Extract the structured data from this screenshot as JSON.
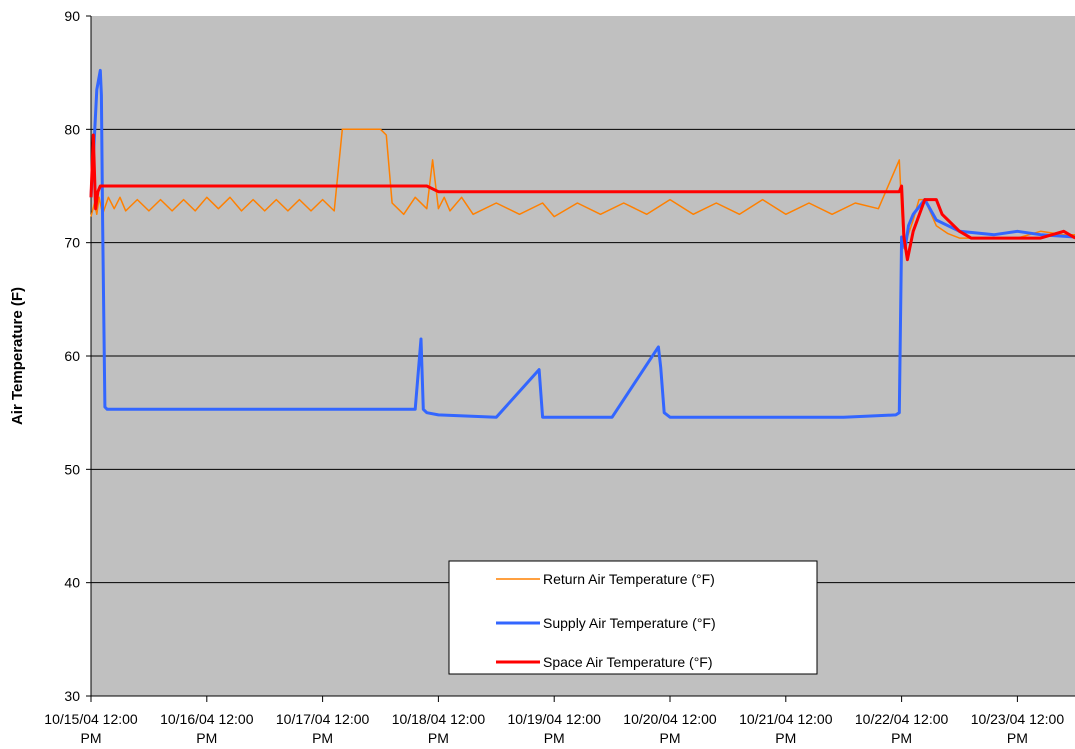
{
  "chart_data": {
    "type": "line",
    "ylabel": "Air Temperature (F)",
    "ylim": [
      30,
      90
    ],
    "yticks": [
      30,
      40,
      50,
      60,
      70,
      80,
      90
    ],
    "xlim": [
      "10/15/04 12:00 PM",
      "10/23/04 12:00 PM (+0.5 day)"
    ],
    "xtick_labels": [
      [
        "10/15/04 12:00",
        "PM"
      ],
      [
        "10/16/04 12:00",
        "PM"
      ],
      [
        "10/17/04 12:00",
        "PM"
      ],
      [
        "10/18/04 12:00",
        "PM"
      ],
      [
        "10/19/04 12:00",
        "PM"
      ],
      [
        "10/20/04 12:00",
        "PM"
      ],
      [
        "10/21/04 12:00",
        "PM"
      ],
      [
        "10/22/04 12:00",
        "PM"
      ],
      [
        "10/23/04 12:00",
        "PM"
      ]
    ],
    "grid": "horizontal",
    "plot_background": "#C0C0C0",
    "legend_position": "bottom-center",
    "series": [
      {
        "name": "Return Air Temperature  (°F)",
        "color": "#FF8000",
        "x_days": [
          0.0,
          0.03,
          0.05,
          0.07,
          0.1,
          0.15,
          0.2,
          0.25,
          0.3,
          0.4,
          0.5,
          0.6,
          0.7,
          0.8,
          0.9,
          1.0,
          1.1,
          1.2,
          1.3,
          1.4,
          1.5,
          1.6,
          1.7,
          1.8,
          1.9,
          2.0,
          2.1,
          2.17,
          2.2,
          2.5,
          2.55,
          2.6,
          2.7,
          2.8,
          2.9,
          2.95,
          3.0,
          3.05,
          3.1,
          3.2,
          3.3,
          3.5,
          3.7,
          3.9,
          4.0,
          4.2,
          4.4,
          4.6,
          4.8,
          5.0,
          5.2,
          5.4,
          5.6,
          5.8,
          6.0,
          6.2,
          6.4,
          6.6,
          6.8,
          6.98,
          7.0,
          7.02,
          7.05,
          7.1,
          7.15,
          7.2,
          7.3,
          7.4,
          7.5,
          7.6,
          7.7,
          7.8,
          8.0,
          8.2,
          8.4,
          8.5
        ],
        "values": [
          72.3,
          73.5,
          72.5,
          74.0,
          72.5,
          74.0,
          73.0,
          74.0,
          72.8,
          73.8,
          72.8,
          73.8,
          72.8,
          73.8,
          72.8,
          74.0,
          73.0,
          74.0,
          72.8,
          73.8,
          72.8,
          73.8,
          72.8,
          73.8,
          72.8,
          73.8,
          72.8,
          80.0,
          80.0,
          80.0,
          79.5,
          73.5,
          72.5,
          74.0,
          73.0,
          77.3,
          73.0,
          74.0,
          72.8,
          74.0,
          72.5,
          73.5,
          72.5,
          73.5,
          72.3,
          73.5,
          72.5,
          73.5,
          72.5,
          73.8,
          72.5,
          73.5,
          72.5,
          73.8,
          72.5,
          73.5,
          72.5,
          73.5,
          73.0,
          77.3,
          73.0,
          69.5,
          70.5,
          72.0,
          73.8,
          73.8,
          71.5,
          70.8,
          70.4,
          70.4,
          70.4,
          70.4,
          70.4,
          71.0,
          70.7,
          70.7
        ]
      },
      {
        "name": "Supply Air Temperature (°F)",
        "color": "#3366FF",
        "x_days": [
          0.0,
          0.03,
          0.05,
          0.08,
          0.09,
          0.1,
          0.12,
          0.14,
          0.2,
          0.5,
          1.0,
          1.5,
          2.0,
          2.5,
          2.8,
          2.85,
          2.87,
          2.9,
          3.0,
          3.5,
          3.87,
          3.9,
          4.0,
          4.5,
          4.9,
          4.92,
          4.95,
          5.0,
          5.5,
          6.0,
          6.5,
          6.95,
          6.98,
          7.0,
          7.03,
          7.06,
          7.1,
          7.2,
          7.3,
          7.5,
          7.8,
          8.0,
          8.2,
          8.5
        ],
        "values": [
          74.0,
          79.5,
          83.5,
          85.2,
          83.0,
          72.0,
          55.5,
          55.3,
          55.3,
          55.3,
          55.3,
          55.3,
          55.3,
          55.3,
          55.3,
          61.5,
          55.3,
          55.0,
          54.8,
          54.6,
          58.8,
          54.6,
          54.6,
          54.6,
          60.8,
          59.0,
          55.0,
          54.6,
          54.6,
          54.6,
          54.6,
          54.8,
          55.0,
          70.5,
          69.5,
          71.5,
          72.5,
          73.8,
          72.0,
          71.0,
          70.7,
          71.0,
          70.7,
          70.5
        ]
      },
      {
        "name": "Space Air Temperature (°F)",
        "color": "#FF0000",
        "x_days": [
          0.0,
          0.02,
          0.04,
          0.06,
          0.08,
          0.1,
          0.3,
          0.5,
          1.0,
          1.5,
          2.0,
          2.5,
          2.9,
          3.0,
          3.2,
          3.4,
          3.8,
          4.0,
          4.5,
          5.0,
          5.5,
          6.0,
          6.5,
          6.98,
          7.0,
          7.02,
          7.05,
          7.1,
          7.2,
          7.3,
          7.35,
          7.4,
          7.5,
          7.6,
          7.8,
          8.0,
          8.2,
          8.4,
          8.5
        ],
        "values": [
          74.0,
          79.5,
          73.0,
          74.5,
          75.0,
          75.0,
          75.0,
          75.0,
          75.0,
          75.0,
          75.0,
          75.0,
          75.0,
          74.5,
          74.5,
          74.5,
          74.5,
          74.5,
          74.5,
          74.5,
          74.5,
          74.5,
          74.5,
          74.5,
          75.0,
          70.5,
          68.5,
          71.0,
          73.8,
          73.8,
          72.5,
          72.0,
          71.0,
          70.4,
          70.4,
          70.4,
          70.4,
          71.0,
          70.4
        ]
      }
    ]
  }
}
